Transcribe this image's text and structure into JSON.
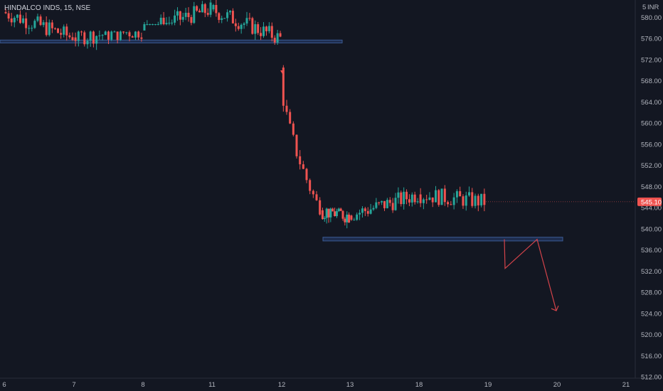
{
  "header": {
    "symbol_title": "HINDALCO INDS, 15, NSE",
    "currency": "INR",
    "currency_marker": "5"
  },
  "price_axis": {
    "current_price_label": "545.10",
    "current_price": 545.1,
    "tick_labels": [
      "580.00",
      "576.00",
      "572.00",
      "568.00",
      "564.00",
      "560.00",
      "556.00",
      "552.00",
      "548.00",
      "544.00",
      "540.00",
      "536.00",
      "532.00",
      "528.00",
      "524.00",
      "520.00",
      "516.00",
      "512.00"
    ]
  },
  "time_axis": {
    "tick_labels": [
      "6",
      "7",
      "8",
      "11",
      "12",
      "13",
      "18",
      "19",
      "20",
      "21"
    ]
  },
  "colors": {
    "background": "#131722",
    "up_candle": "#26a69a",
    "down_candle": "#ef5350",
    "zone_fill": "#1e2d4f",
    "zone_border": "#3b5b94",
    "arrow": "#d3434a",
    "price_tag": "#ef5350"
  },
  "drawings": {
    "resistance_zone": {
      "price_top": 575.7,
      "price_bottom": 575.2
    },
    "support_zone": {
      "price_top": 538.4,
      "price_bottom": 537.7
    },
    "forecast_path": [
      538.0,
      532.5,
      538.0,
      524.5
    ]
  },
  "chart_data": {
    "type": "candlestick",
    "title": "HINDALCO INDS, 15, NSE",
    "ylim": [
      512,
      582
    ],
    "x": [
      "6",
      "7",
      "8",
      "11",
      "12",
      "13",
      "18",
      "19",
      "20",
      "21"
    ],
    "segments": [
      {
        "label": "6 to 7",
        "open": 581,
        "close": 576.2,
        "high": 585,
        "low": 575.5,
        "bars": 24
      },
      {
        "label": "7 to 8",
        "open": 576.2,
        "close": 577.5,
        "high": 577.5,
        "low": 569.5,
        "bars": 23
      },
      {
        "label": "8 to 11",
        "open": 577.5,
        "close": 581.5,
        "high": 586,
        "low": 578.5,
        "bars": 25
      },
      {
        "label": "11 to 12",
        "open": 581.5,
        "close": 576.0,
        "high": 585,
        "low": 574.8,
        "bars": 25
      },
      {
        "label": "12 drop",
        "open": 570.5,
        "close": 543.5,
        "high": 571.5,
        "low": 542.5,
        "bars": 12
      },
      {
        "label": "12 to 13",
        "open": 543.5,
        "close": 542.5,
        "high": 544,
        "low": 538.8,
        "bars": 14
      },
      {
        "label": "13 to 18",
        "open": 542.5,
        "close": 546.5,
        "high": 552.3,
        "low": 541.5,
        "bars": 25
      },
      {
        "label": "18 to 19",
        "open": 546.5,
        "close": 545.1,
        "high": 555.5,
        "low": 537.5,
        "bars": 22
      }
    ]
  }
}
